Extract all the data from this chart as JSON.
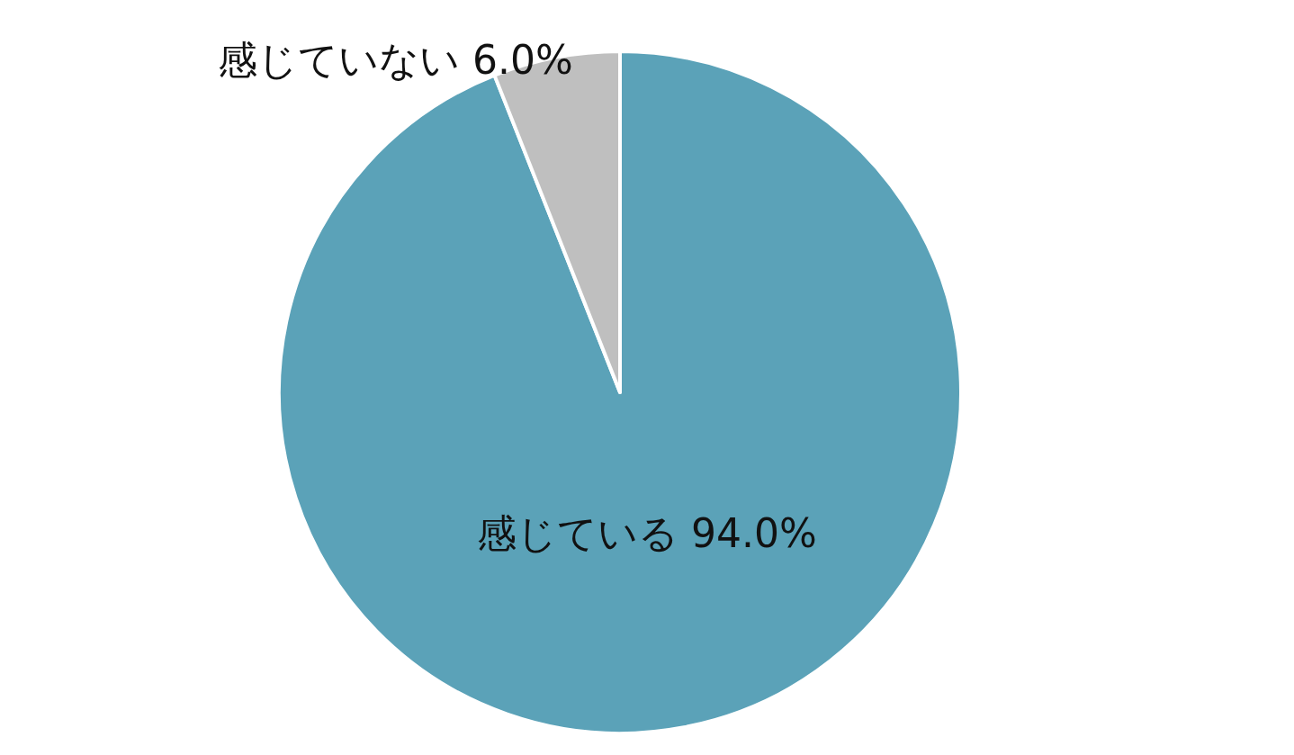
{
  "chart_data": {
    "type": "pie",
    "categories": [
      "感じている",
      "感じていない"
    ],
    "values": [
      94.0,
      6.0
    ],
    "colors": [
      "#5ba2b8",
      "#bfbfbf"
    ],
    "value_labels": [
      "94.0%",
      "6.0%"
    ]
  }
}
